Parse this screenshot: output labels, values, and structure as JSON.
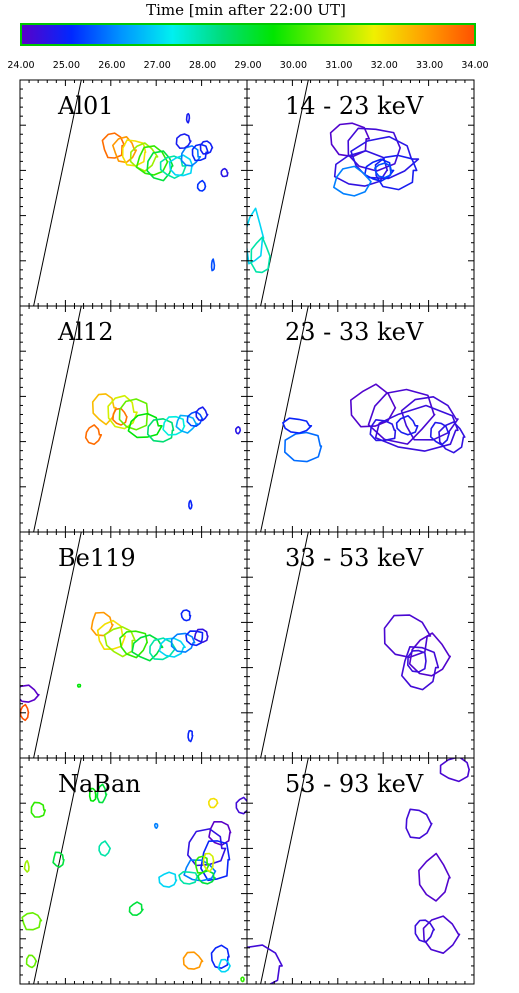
{
  "colorbar": {
    "title": "Time [min after 22:00 UT]",
    "ticks": [
      "24.00",
      "25.00",
      "26.00",
      "27.00",
      "28.00",
      "29.00",
      "30.00",
      "31.00",
      "32.00",
      "33.00",
      "34.00"
    ],
    "tmin": 24,
    "tmax": 34,
    "gradient": [
      "#5a00c8",
      "#0028ff",
      "#0096ff",
      "#00f0f0",
      "#00dc78",
      "#00e600",
      "#78f000",
      "#f0f000",
      "#ffa000",
      "#ff5000"
    ]
  },
  "chart_data": [
    {
      "type": "contour",
      "label": "Al01",
      "contours": [
        {
          "t": 33.6,
          "x": 0.41,
          "y": 0.29,
          "rx": 0.045,
          "ry": 0.06
        },
        {
          "t": 33.0,
          "x": 0.46,
          "y": 0.31,
          "rx": 0.05,
          "ry": 0.055
        },
        {
          "t": 32.0,
          "x": 0.5,
          "y": 0.32,
          "rx": 0.055,
          "ry": 0.06
        },
        {
          "t": 31.0,
          "x": 0.54,
          "y": 0.34,
          "rx": 0.06,
          "ry": 0.065
        },
        {
          "t": 30.0,
          "x": 0.58,
          "y": 0.36,
          "rx": 0.065,
          "ry": 0.07
        },
        {
          "t": 29.0,
          "x": 0.62,
          "y": 0.38,
          "rx": 0.06,
          "ry": 0.06
        },
        {
          "t": 28.0,
          "x": 0.67,
          "y": 0.38,
          "rx": 0.055,
          "ry": 0.05
        },
        {
          "t": 27.0,
          "x": 0.71,
          "y": 0.38,
          "rx": 0.05,
          "ry": 0.045
        },
        {
          "t": 26.0,
          "x": 0.75,
          "y": 0.34,
          "rx": 0.04,
          "ry": 0.045
        },
        {
          "t": 25.0,
          "x": 0.79,
          "y": 0.32,
          "rx": 0.035,
          "ry": 0.04
        },
        {
          "t": 24.8,
          "x": 0.72,
          "y": 0.27,
          "rx": 0.03,
          "ry": 0.035
        },
        {
          "t": 24.9,
          "x": 0.82,
          "y": 0.3,
          "rx": 0.025,
          "ry": 0.03
        },
        {
          "t": 24.6,
          "x": 0.9,
          "y": 0.41,
          "rx": 0.015,
          "ry": 0.02
        },
        {
          "t": 25.2,
          "x": 0.8,
          "y": 0.47,
          "rx": 0.02,
          "ry": 0.025
        },
        {
          "t": 24.8,
          "x": 0.74,
          "y": 0.17,
          "rx": 0.005,
          "ry": 0.02
        },
        {
          "t": 25.5,
          "x": 0.85,
          "y": 0.82,
          "rx": 0.005,
          "ry": 0.025
        }
      ]
    },
    {
      "type": "contour",
      "label": "14 - 23 keV",
      "contours": [
        {
          "t": 24.1,
          "x": 0.45,
          "y": 0.26,
          "rx": 0.09,
          "ry": 0.08
        },
        {
          "t": 24.3,
          "x": 0.55,
          "y": 0.3,
          "rx": 0.12,
          "ry": 0.1
        },
        {
          "t": 24.5,
          "x": 0.5,
          "y": 0.4,
          "rx": 0.12,
          "ry": 0.08
        },
        {
          "t": 24.6,
          "x": 0.6,
          "y": 0.35,
          "rx": 0.15,
          "ry": 0.1
        },
        {
          "t": 24.8,
          "x": 0.65,
          "y": 0.4,
          "rx": 0.1,
          "ry": 0.08
        },
        {
          "t": 25.0,
          "x": 0.58,
          "y": 0.4,
          "rx": 0.06,
          "ry": 0.05
        },
        {
          "t": 25.5,
          "x": 0.6,
          "y": 0.4,
          "rx": 0.04,
          "ry": 0.03
        },
        {
          "t": 26.0,
          "x": 0.46,
          "y": 0.45,
          "rx": 0.08,
          "ry": 0.07
        },
        {
          "t": 27.0,
          "x": 0.03,
          "y": 0.7,
          "rx": 0.04,
          "ry": 0.12
        },
        {
          "t": 28.0,
          "x": 0.06,
          "y": 0.78,
          "rx": 0.04,
          "ry": 0.08
        }
      ]
    },
    {
      "type": "contour",
      "label": "Al12",
      "contours": [
        {
          "t": 33.6,
          "x": 0.32,
          "y": 0.57,
          "rx": 0.035,
          "ry": 0.04
        },
        {
          "t": 32.5,
          "x": 0.37,
          "y": 0.45,
          "rx": 0.05,
          "ry": 0.07
        },
        {
          "t": 33.5,
          "x": 0.44,
          "y": 0.49,
          "rx": 0.03,
          "ry": 0.035
        },
        {
          "t": 31.5,
          "x": 0.45,
          "y": 0.47,
          "rx": 0.06,
          "ry": 0.07
        },
        {
          "t": 30.5,
          "x": 0.5,
          "y": 0.48,
          "rx": 0.07,
          "ry": 0.07
        },
        {
          "t": 29.5,
          "x": 0.55,
          "y": 0.53,
          "rx": 0.07,
          "ry": 0.06
        },
        {
          "t": 28.5,
          "x": 0.62,
          "y": 0.55,
          "rx": 0.06,
          "ry": 0.05
        },
        {
          "t": 27.5,
          "x": 0.68,
          "y": 0.53,
          "rx": 0.05,
          "ry": 0.045
        },
        {
          "t": 26.5,
          "x": 0.73,
          "y": 0.52,
          "rx": 0.045,
          "ry": 0.04
        },
        {
          "t": 25.5,
          "x": 0.77,
          "y": 0.5,
          "rx": 0.035,
          "ry": 0.035
        },
        {
          "t": 24.8,
          "x": 0.8,
          "y": 0.48,
          "rx": 0.025,
          "ry": 0.03
        },
        {
          "t": 24.6,
          "x": 0.96,
          "y": 0.55,
          "rx": 0.01,
          "ry": 0.015
        },
        {
          "t": 25.0,
          "x": 0.75,
          "y": 0.88,
          "rx": 0.005,
          "ry": 0.02
        }
      ]
    },
    {
      "type": "contour",
      "label": "23 - 33 keV",
      "contours": [
        {
          "t": 24.1,
          "x": 0.55,
          "y": 0.45,
          "rx": 0.1,
          "ry": 0.1
        },
        {
          "t": 24.2,
          "x": 0.68,
          "y": 0.48,
          "rx": 0.14,
          "ry": 0.12
        },
        {
          "t": 24.3,
          "x": 0.8,
          "y": 0.5,
          "rx": 0.12,
          "ry": 0.1
        },
        {
          "t": 24.4,
          "x": 0.75,
          "y": 0.55,
          "rx": 0.2,
          "ry": 0.1
        },
        {
          "t": 24.6,
          "x": 0.6,
          "y": 0.55,
          "rx": 0.06,
          "ry": 0.05
        },
        {
          "t": 24.8,
          "x": 0.7,
          "y": 0.53,
          "rx": 0.05,
          "ry": 0.04
        },
        {
          "t": 24.5,
          "x": 0.9,
          "y": 0.58,
          "rx": 0.06,
          "ry": 0.07
        },
        {
          "t": 24.7,
          "x": 0.85,
          "y": 0.56,
          "rx": 0.04,
          "ry": 0.05
        },
        {
          "t": 25.8,
          "x": 0.25,
          "y": 0.62,
          "rx": 0.08,
          "ry": 0.07
        },
        {
          "t": 25.0,
          "x": 0.22,
          "y": 0.53,
          "rx": 0.06,
          "ry": 0.035
        }
      ]
    },
    {
      "type": "contour",
      "label": "Be119",
      "contours": [
        {
          "t": 33.0,
          "x": 0.36,
          "y": 0.41,
          "rx": 0.05,
          "ry": 0.055
        },
        {
          "t": 32.0,
          "x": 0.4,
          "y": 0.46,
          "rx": 0.06,
          "ry": 0.07
        },
        {
          "t": 31.0,
          "x": 0.44,
          "y": 0.48,
          "rx": 0.065,
          "ry": 0.065
        },
        {
          "t": 30.0,
          "x": 0.5,
          "y": 0.49,
          "rx": 0.065,
          "ry": 0.06
        },
        {
          "t": 29.0,
          "x": 0.56,
          "y": 0.51,
          "rx": 0.065,
          "ry": 0.055
        },
        {
          "t": 28.0,
          "x": 0.62,
          "y": 0.52,
          "rx": 0.06,
          "ry": 0.05
        },
        {
          "t": 27.0,
          "x": 0.67,
          "y": 0.51,
          "rx": 0.055,
          "ry": 0.045
        },
        {
          "t": 26.0,
          "x": 0.72,
          "y": 0.49,
          "rx": 0.05,
          "ry": 0.04
        },
        {
          "t": 25.0,
          "x": 0.77,
          "y": 0.47,
          "rx": 0.04,
          "ry": 0.035
        },
        {
          "t": 24.5,
          "x": 0.8,
          "y": 0.46,
          "rx": 0.03,
          "ry": 0.03
        },
        {
          "t": 25.0,
          "x": 0.73,
          "y": 0.37,
          "rx": 0.02,
          "ry": 0.025
        },
        {
          "t": 24.0,
          "x": 0.03,
          "y": 0.72,
          "rx": 0.05,
          "ry": 0.04
        },
        {
          "t": 34.0,
          "x": 0.02,
          "y": 0.8,
          "rx": 0.02,
          "ry": 0.035
        },
        {
          "t": 29.5,
          "x": 0.26,
          "y": 0.68,
          "rx": 0.003,
          "ry": 0.003
        },
        {
          "t": 25.0,
          "x": 0.75,
          "y": 0.9,
          "rx": 0.01,
          "ry": 0.025
        }
      ]
    },
    {
      "type": "contour",
      "label": "33 - 53 keV",
      "contours": [
        {
          "t": 24.2,
          "x": 0.7,
          "y": 0.46,
          "rx": 0.1,
          "ry": 0.1
        },
        {
          "t": 24.1,
          "x": 0.8,
          "y": 0.55,
          "rx": 0.09,
          "ry": 0.1
        },
        {
          "t": 24.3,
          "x": 0.76,
          "y": 0.6,
          "rx": 0.08,
          "ry": 0.1
        },
        {
          "t": 24.4,
          "x": 0.75,
          "y": 0.57,
          "rx": 0.04,
          "ry": 0.05
        }
      ]
    },
    {
      "type": "contour",
      "label": "NaBan",
      "contours": [
        {
          "t": 24.0,
          "x": 0.88,
          "y": 0.33,
          "rx": 0.05,
          "ry": 0.055
        },
        {
          "t": 24.5,
          "x": 0.82,
          "y": 0.4,
          "rx": 0.08,
          "ry": 0.08
        },
        {
          "t": 25.0,
          "x": 0.86,
          "y": 0.45,
          "rx": 0.06,
          "ry": 0.1
        },
        {
          "t": 26.0,
          "x": 0.79,
          "y": 0.5,
          "rx": 0.07,
          "ry": 0.05
        },
        {
          "t": 27.0,
          "x": 0.65,
          "y": 0.54,
          "rx": 0.04,
          "ry": 0.035
        },
        {
          "t": 28.0,
          "x": 0.74,
          "y": 0.53,
          "rx": 0.04,
          "ry": 0.03
        },
        {
          "t": 29.0,
          "x": 0.82,
          "y": 0.53,
          "rx": 0.04,
          "ry": 0.03
        },
        {
          "t": 30.0,
          "x": 0.8,
          "y": 0.47,
          "rx": 0.03,
          "ry": 0.04
        },
        {
          "t": 31.5,
          "x": 0.83,
          "y": 0.46,
          "rx": 0.025,
          "ry": 0.04
        },
        {
          "t": 32.0,
          "x": 0.85,
          "y": 0.2,
          "rx": 0.02,
          "ry": 0.02
        },
        {
          "t": 30.0,
          "x": 0.08,
          "y": 0.23,
          "rx": 0.03,
          "ry": 0.035
        },
        {
          "t": 29.0,
          "x": 0.36,
          "y": 0.16,
          "rx": 0.02,
          "ry": 0.04
        },
        {
          "t": 29.5,
          "x": 0.32,
          "y": 0.16,
          "rx": 0.015,
          "ry": 0.03
        },
        {
          "t": 31.0,
          "x": 0.03,
          "y": 0.48,
          "rx": 0.01,
          "ry": 0.025
        },
        {
          "t": 30.5,
          "x": 0.05,
          "y": 0.72,
          "rx": 0.04,
          "ry": 0.04
        },
        {
          "t": 29.0,
          "x": 0.17,
          "y": 0.45,
          "rx": 0.025,
          "ry": 0.035
        },
        {
          "t": 28.0,
          "x": 0.37,
          "y": 0.4,
          "rx": 0.025,
          "ry": 0.03
        },
        {
          "t": 29.0,
          "x": 0.51,
          "y": 0.67,
          "rx": 0.03,
          "ry": 0.03
        },
        {
          "t": 30.5,
          "x": 0.05,
          "y": 0.9,
          "rx": 0.02,
          "ry": 0.03
        },
        {
          "t": 33.0,
          "x": 0.76,
          "y": 0.9,
          "rx": 0.04,
          "ry": 0.04
        },
        {
          "t": 25.0,
          "x": 0.88,
          "y": 0.88,
          "rx": 0.04,
          "ry": 0.05
        },
        {
          "t": 27.0,
          "x": 0.9,
          "y": 0.92,
          "rx": 0.025,
          "ry": 0.03
        },
        {
          "t": 24.3,
          "x": 0.98,
          "y": 0.21,
          "rx": 0.03,
          "ry": 0.035
        },
        {
          "t": 26.0,
          "x": 0.6,
          "y": 0.3,
          "rx": 0.005,
          "ry": 0.01
        },
        {
          "t": 30.0,
          "x": 0.98,
          "y": 0.98,
          "rx": 0.005,
          "ry": 0.01
        }
      ]
    },
    {
      "type": "contour",
      "label": "53 - 93 keV",
      "contours": [
        {
          "t": 24.2,
          "x": 0.92,
          "y": 0.05,
          "rx": 0.07,
          "ry": 0.05
        },
        {
          "t": 24.3,
          "x": 0.75,
          "y": 0.29,
          "rx": 0.06,
          "ry": 0.07
        },
        {
          "t": 24.1,
          "x": 0.82,
          "y": 0.53,
          "rx": 0.07,
          "ry": 0.1
        },
        {
          "t": 24.2,
          "x": 0.85,
          "y": 0.78,
          "rx": 0.08,
          "ry": 0.08
        },
        {
          "t": 24.4,
          "x": 0.78,
          "y": 0.76,
          "rx": 0.04,
          "ry": 0.05
        },
        {
          "t": 24.3,
          "x": 0.05,
          "y": 0.92,
          "rx": 0.1,
          "ry": 0.09
        }
      ]
    }
  ]
}
